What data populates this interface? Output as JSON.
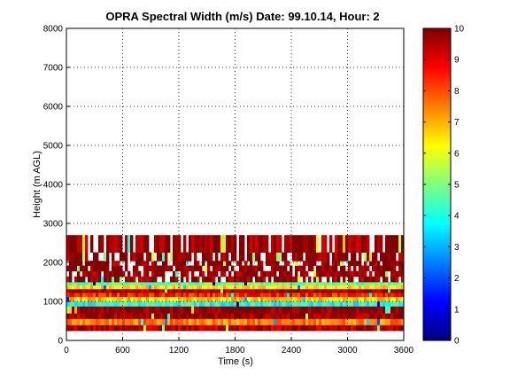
{
  "chart_data": {
    "type": "heatmap",
    "title": "OPRA Spectral Width (m/s)  Date: 99.10.14, Hour: 2",
    "xlabel": "Time (s)",
    "ylabel": "Height (m AGL)",
    "xlim": [
      0,
      3600
    ],
    "ylim": [
      0,
      8000
    ],
    "xticks": [
      0,
      600,
      1200,
      1800,
      2400,
      3000,
      3600
    ],
    "yticks": [
      0,
      1000,
      2000,
      3000,
      4000,
      5000,
      6000,
      7000,
      8000
    ],
    "grid": true,
    "colorbar": {
      "min": 0,
      "max": 10,
      "ticks": [
        0,
        1,
        2,
        3,
        4,
        5,
        6,
        7,
        8,
        9,
        10
      ],
      "colormap": "jet"
    },
    "height_bands": [
      {
        "height_range": [
          250,
          400
        ],
        "value": 9.5
      },
      {
        "height_range": [
          400,
          560
        ],
        "value": 7.5
      },
      {
        "height_range": [
          560,
          700
        ],
        "value": 9.8
      },
      {
        "height_range": [
          700,
          880
        ],
        "value": 10
      },
      {
        "height_range": [
          880,
          1000
        ],
        "value": 4.0
      },
      {
        "height_range": [
          1000,
          1120
        ],
        "value": 6.8
      },
      {
        "height_range": [
          1120,
          1230
        ],
        "value": 8.5
      },
      {
        "height_range": [
          1230,
          1320
        ],
        "value": 9.8
      },
      {
        "height_range": [
          1320,
          1420
        ],
        "value": 6.5
      },
      {
        "height_range": [
          1420,
          1500
        ],
        "value": 4.5
      },
      {
        "height_range": [
          1500,
          1640
        ],
        "value": 9.7
      },
      {
        "height_range": [
          1640,
          1780
        ],
        "value": 9.9
      },
      {
        "height_range": [
          1780,
          1920
        ],
        "value": 10
      },
      {
        "height_range": [
          1920,
          2040
        ],
        "value": 9.9
      },
      {
        "height_range": [
          2040,
          2260
        ],
        "value": 10
      },
      {
        "height_range": [
          2260,
          2700
        ],
        "value": 9.8
      }
    ]
  }
}
